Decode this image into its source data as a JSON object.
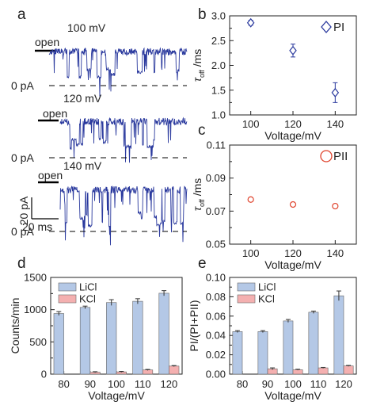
{
  "panel_letters": {
    "a": "a",
    "b": "b",
    "c": "c",
    "d": "d",
    "e": "e"
  },
  "traces": {
    "open_label": "open",
    "zero_label": "0 pA",
    "voltages": [
      "100 mV",
      "120 mV",
      "140 mV"
    ],
    "scale_current": "20 pA",
    "scale_time": "20 ms",
    "trace_color": "#2b3a9e"
  },
  "chart_data": [
    {
      "id": "b",
      "type": "scatter",
      "legend": "PI",
      "marker": "diamond",
      "color": "#2b3a9e",
      "xlabel": "Voltage/mV",
      "ylabel_main": "τ",
      "ylabel_sub": "off",
      "ylabel_unit": " /ms",
      "x": [
        100,
        120,
        140
      ],
      "y": [
        2.86,
        2.3,
        1.45
      ],
      "err": [
        0.05,
        0.13,
        0.2
      ],
      "xlim": [
        90,
        150
      ],
      "ylim": [
        1.0,
        3.0
      ],
      "xticks": [
        "100",
        "120",
        "140"
      ],
      "yticks": [
        "1.0",
        "1.5",
        "2.0",
        "2.5",
        "3.0"
      ]
    },
    {
      "id": "c",
      "type": "scatter",
      "legend": "PII",
      "marker": "circle",
      "color": "#e0442e",
      "xlabel": "Voltage/mV",
      "ylabel_main": "τ",
      "ylabel_sub": "off",
      "ylabel_unit": " /ms",
      "x": [
        100,
        120,
        140
      ],
      "y": [
        0.077,
        0.074,
        0.073
      ],
      "xlim": [
        90,
        150
      ],
      "ylim": [
        0.05,
        0.11
      ],
      "xticks": [
        "100",
        "120",
        "140"
      ],
      "yticks": [
        "0.05",
        "0.07",
        "0.09",
        "0.11"
      ]
    },
    {
      "id": "d",
      "type": "bar",
      "categories": [
        "80",
        "90",
        "100",
        "110",
        "120"
      ],
      "series": [
        {
          "name": "LiCl",
          "color": "#b4c8e6",
          "values": [
            940,
            1035,
            1110,
            1130,
            1255
          ],
          "err": [
            30,
            20,
            45,
            40,
            40
          ]
        },
        {
          "name": "KCl",
          "color": "#f4b0b0",
          "values": [
            0,
            30,
            35,
            65,
            125
          ],
          "err": [
            0,
            8,
            8,
            8,
            8
          ]
        }
      ],
      "xlabel": "Voltage/mV",
      "ylabel": "Counts/min",
      "ylim": [
        0,
        1500
      ],
      "yticks": [
        "0",
        "500",
        "1000",
        "1500"
      ]
    },
    {
      "id": "e",
      "type": "bar",
      "categories": [
        "80",
        "90",
        "100",
        "110",
        "120"
      ],
      "series": [
        {
          "name": "LiCl",
          "color": "#b4c8e6",
          "values": [
            0.044,
            0.044,
            0.055,
            0.064,
            0.081
          ],
          "err": [
            0.001,
            0.001,
            0.0015,
            0.0012,
            0.005
          ]
        },
        {
          "name": "KCl",
          "color": "#f4b0b0",
          "values": [
            0,
            0.0055,
            0.0045,
            0.0065,
            0.0085
          ],
          "err": [
            0,
            0.001,
            0.0005,
            0.0005,
            0.0005
          ]
        }
      ],
      "xlabel": "Voltage/mV",
      "ylabel": "PI/(PI+PII)",
      "ylim": [
        0,
        0.1
      ],
      "yticks": [
        "0.00",
        "0.02",
        "0.04",
        "0.06",
        "0.08",
        "0.10"
      ]
    }
  ]
}
